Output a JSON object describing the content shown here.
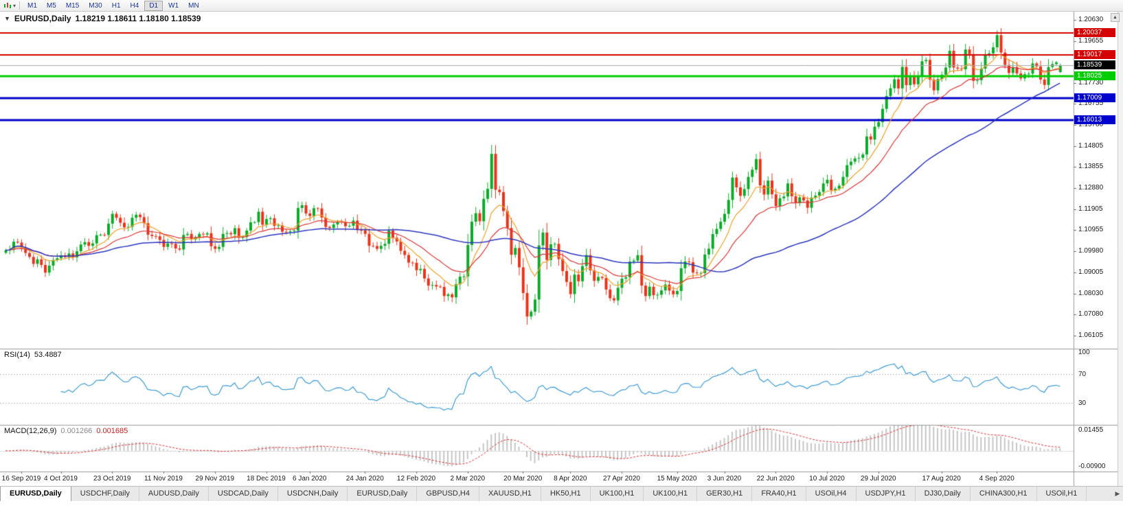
{
  "toolbar": {
    "timeframes": [
      "M1",
      "M5",
      "M15",
      "M30",
      "H1",
      "H4",
      "D1",
      "W1",
      "MN"
    ],
    "active": "D1"
  },
  "icons": {
    "collapse": "▼",
    "caret": "▾",
    "scroll_up": "▲",
    "scroll_right": "▶"
  },
  "chart": {
    "symbol_title": "EURUSD,Daily",
    "ohlc_text": "1.18219 1.18611 1.18180 1.18539",
    "levels": [
      {
        "text": "1.20037",
        "price": 1.20037,
        "color": "#d40000",
        "width": 2
      },
      {
        "text": "1.19017",
        "price": 1.19017,
        "color": "#d40000",
        "width": 2
      },
      {
        "text": "1.18539",
        "price": 1.18539,
        "color": "#a8a8a8",
        "width": 1,
        "tag_bg": "#000000",
        "kind": "bid"
      },
      {
        "text": "1.18025",
        "price": 1.18025,
        "color": "#00cc00",
        "width": 3
      },
      {
        "text": "1.17009",
        "price": 1.17009,
        "color": "#0000cc",
        "width": 3
      },
      {
        "text": "1.16013",
        "price": 1.16013,
        "color": "#0000cc",
        "width": 3
      }
    ]
  },
  "rsi": {
    "title": "RSI(14)",
    "value": "53.4887",
    "axis": [
      {
        "text": "100",
        "value": 100
      },
      {
        "text": "70",
        "value": 70
      },
      {
        "text": "30",
        "value": 30
      }
    ],
    "levels": [
      70,
      30
    ]
  },
  "macd": {
    "title": "MACD(12,26,9)",
    "value_main": "0.001266",
    "value_signal": "0.001685",
    "axis_top": "0.01455",
    "axis_bottom": "-0.00900"
  },
  "tabs": [
    {
      "label": "EURUSD,Daily",
      "active": true
    },
    {
      "label": "USDCHF,Daily",
      "active": false
    },
    {
      "label": "AUDUSD,Daily",
      "active": false
    },
    {
      "label": "USDCAD,Daily",
      "active": false
    },
    {
      "label": "USDCNH,Daily",
      "active": false
    },
    {
      "label": "EURUSD,Daily",
      "active": false
    },
    {
      "label": "GBPUSD,H4",
      "active": false
    },
    {
      "label": "XAUUSD,H1",
      "active": false
    },
    {
      "label": "HK50,H1",
      "active": false
    },
    {
      "label": "UK100,H1",
      "active": false
    },
    {
      "label": "UK100,H1",
      "active": false
    },
    {
      "label": "GER30,H1",
      "active": false
    },
    {
      "label": "FRA40,H1",
      "active": false
    },
    {
      "label": "USOil,H4",
      "active": false
    },
    {
      "label": "USDJPY,H1",
      "active": false
    },
    {
      "label": "DJ30,Daily",
      "active": false
    },
    {
      "label": "CHINA300,H1",
      "active": false
    },
    {
      "label": "USOil,H1",
      "active": false
    }
  ],
  "colors": {
    "up": "#0bab29",
    "down": "#e8341c",
    "ma_fast": "#f0a028",
    "ma_mid": "#dd3333",
    "ma_slow": "#2a35c0",
    "rsi_line": "#3d9bd5",
    "macd_hist": "#c6c6c6",
    "macd_signal": "#dd3333",
    "level_red": "#d40000",
    "level_green": "#00cc00",
    "level_blue": "#0000cc"
  },
  "chart_data": {
    "type": "candlestick",
    "symbol": "EURUSD",
    "timeframe": "Daily",
    "last_candle": {
      "open": 1.18219,
      "high": 1.18611,
      "low": 1.1818,
      "close": 1.18539
    },
    "price_axis": {
      "top": 1.21,
      "bottom": 1.055,
      "ticks": [
        {
          "text": "1.20630",
          "price": 1.2063
        },
        {
          "text": "1.19655",
          "price": 1.19655
        },
        {
          "text": "1.17730",
          "price": 1.1773
        },
        {
          "text": "1.16755",
          "price": 1.16755
        },
        {
          "text": "1.15780",
          "price": 1.1578
        },
        {
          "text": "1.14805",
          "price": 1.14805
        },
        {
          "text": "1.13855",
          "price": 1.13855
        },
        {
          "text": "1.12880",
          "price": 1.1288
        },
        {
          "text": "1.11905",
          "price": 1.11905
        },
        {
          "text": "1.10955",
          "price": 1.10955
        },
        {
          "text": "1.09980",
          "price": 1.0998
        },
        {
          "text": "1.09005",
          "price": 1.09005
        },
        {
          "text": "1.08030",
          "price": 1.0803
        },
        {
          "text": "1.07080",
          "price": 1.0708
        },
        {
          "text": "1.06105",
          "price": 1.06105
        }
      ]
    },
    "date_labels": [
      {
        "text": "16 Sep 2019",
        "bar": 4
      },
      {
        "text": "4 Oct 2019",
        "bar": 14
      },
      {
        "text": "23 Oct 2019",
        "bar": 27
      },
      {
        "text": "11 Nov 2019",
        "bar": 40
      },
      {
        "text": "29 Nov 2019",
        "bar": 53
      },
      {
        "text": "18 Dec 2019",
        "bar": 66
      },
      {
        "text": "6 Jan 2020",
        "bar": 77
      },
      {
        "text": "24 Jan 2020",
        "bar": 91
      },
      {
        "text": "12 Feb 2020",
        "bar": 104
      },
      {
        "text": "2 Mar 2020",
        "bar": 117
      },
      {
        "text": "20 Mar 2020",
        "bar": 131
      },
      {
        "text": "8 Apr 2020",
        "bar": 143
      },
      {
        "text": "27 Apr 2020",
        "bar": 156
      },
      {
        "text": "15 May 2020",
        "bar": 170
      },
      {
        "text": "3 Jun 2020",
        "bar": 182
      },
      {
        "text": "22 Jun 2020",
        "bar": 195
      },
      {
        "text": "10 Jul 2020",
        "bar": 208
      },
      {
        "text": "29 Jul 2020",
        "bar": 221
      },
      {
        "text": "17 Aug 2020",
        "bar": 237
      },
      {
        "text": "4 Sep 2020",
        "bar": 251
      }
    ],
    "overlays": [
      {
        "type": "EMA",
        "period": 9,
        "color": "#f0a028"
      },
      {
        "type": "EMA",
        "period": 21,
        "color": "#dd3333"
      },
      {
        "type": "SMA",
        "period": 55,
        "color": "#2a35c0"
      }
    ],
    "indicators": [
      {
        "name": "RSI",
        "period": 14,
        "value": 53.4887,
        "levels": [
          70,
          30
        ]
      },
      {
        "name": "MACD",
        "fast": 12,
        "slow": 26,
        "signal": 9,
        "value_main": 0.001266,
        "value_signal": 0.001685
      }
    ],
    "closes": [
      1.1003,
      1.1005,
      1.1042,
      1.1038,
      1.1017,
      1.099,
      1.0972,
      1.094,
      1.0961,
      1.0935,
      1.09,
      1.0932,
      1.0958,
      1.0966,
      1.0979,
      1.0971,
      1.0988,
      1.097,
      1.0998,
      1.1029,
      1.104,
      1.1023,
      1.1034,
      1.1072,
      1.1074,
      1.1073,
      1.1125,
      1.117,
      1.1152,
      1.1129,
      1.1108,
      1.111,
      1.1152,
      1.1166,
      1.1155,
      1.1127,
      1.1074,
      1.1068,
      1.1067,
      1.105,
      1.1018,
      1.1034,
      1.1032,
      1.1011,
      1.1006,
      1.1073,
      1.1078,
      1.1052,
      1.1062,
      1.1078,
      1.1075,
      1.1081,
      1.1021,
      1.1009,
      1.1018,
      1.1078,
      1.1082,
      1.1076,
      1.1104,
      1.106,
      1.1064,
      1.1093,
      1.1131,
      1.1132,
      1.118,
      1.112,
      1.1146,
      1.115,
      1.1115,
      1.1117,
      1.1088,
      1.1087,
      1.109,
      1.1093,
      1.1197,
      1.121,
      1.1172,
      1.116,
      1.1196,
      1.1195,
      1.1153,
      1.111,
      1.1105,
      1.1121,
      1.1134,
      1.1133,
      1.1113,
      1.1115,
      1.1139,
      1.1096,
      1.1095,
      1.1078,
      1.1023,
      1.1022,
      1.1009,
      1.1023,
      1.1032,
      1.1093,
      1.106,
      1.1043,
      1.1,
      1.0981,
      1.0946,
      1.0945,
      1.0911,
      1.0917,
      1.0873,
      1.084,
      1.0843,
      1.0836,
      1.0834,
      1.0792,
      1.08,
      1.0786,
      1.0846,
      1.0881,
      1.0882,
      1.1027,
      1.1134,
      1.1173,
      1.1136,
      1.1239,
      1.1285,
      1.1446,
      1.1281,
      1.127,
      1.1183,
      1.1105,
      1.0982,
      1.1013,
      1.0924,
      1.0806,
      1.0698,
      1.072,
      1.0776,
      1.1025,
      1.1084,
      1.0958,
      1.103,
      1.1032,
      1.0962,
      1.0907,
      1.0857,
      1.0801,
      1.0891,
      1.086,
      1.093,
      1.098,
      1.091,
      1.0862,
      1.088,
      1.0875,
      1.0822,
      1.0782,
      1.0772,
      1.083,
      1.0872,
      1.0878,
      1.095,
      1.0955,
      1.098,
      1.084,
      1.0792,
      1.0835,
      1.0796,
      1.0798,
      1.0818,
      1.0845,
      1.0817,
      1.08,
      1.0815,
      1.092,
      1.0951,
      1.0948,
      1.09,
      1.0897,
      1.0898,
      1.0983,
      1.101,
      1.1077,
      1.1101,
      1.1134,
      1.117,
      1.1234,
      1.1337,
      1.1292,
      1.1253,
      1.1284,
      1.134,
      1.1373,
      1.1422,
      1.1301,
      1.1259,
      1.1323,
      1.126,
      1.1206,
      1.1242,
      1.125,
      1.131,
      1.1251,
      1.1219,
      1.1246,
      1.1232,
      1.1198,
      1.1245,
      1.1254,
      1.1271,
      1.131,
      1.1327,
      1.1279,
      1.1286,
      1.13,
      1.134,
      1.1394,
      1.141,
      1.1425,
      1.1428,
      1.1443,
      1.1526,
      1.1512,
      1.1571,
      1.1592,
      1.1653,
      1.1712,
      1.1748,
      1.1789,
      1.1747,
      1.1846,
      1.1762,
      1.1802,
      1.1766,
      1.1805,
      1.1872,
      1.1878,
      1.1787,
      1.1738,
      1.179,
      1.181,
      1.1843,
      1.192,
      1.1843,
      1.1838,
      1.1835,
      1.1926,
      1.1905,
      1.1782,
      1.1785,
      1.1838,
      1.19,
      1.1908,
      1.1936,
      1.1992,
      1.1912,
      1.1855,
      1.1818,
      1.1845,
      1.1816,
      1.1793,
      1.1812,
      1.1815,
      1.1862,
      1.1848,
      1.1788,
      1.1763,
      1.1845,
      1.1859,
      1.1867,
      1.18539
    ]
  }
}
